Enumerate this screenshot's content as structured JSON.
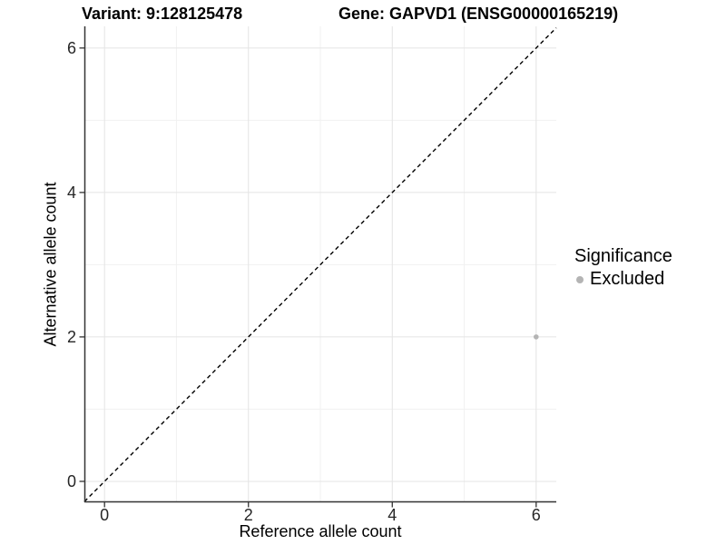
{
  "header": {
    "variant_title": "Variant: 9:128125478",
    "gene_title": "Gene: GAPVD1 (ENSG00000165219)"
  },
  "chart_data": {
    "type": "scatter",
    "xlabel": "Reference allele count",
    "ylabel": "Alternative allele count",
    "xlim": [
      -0.28,
      6.28
    ],
    "ylim": [
      -0.29,
      6.3
    ],
    "x_ticks": [
      0,
      2,
      4,
      6
    ],
    "y_ticks": [
      0,
      2,
      4,
      6
    ],
    "x_minor_grid": [
      1,
      3,
      5
    ],
    "y_minor_grid": [
      1,
      3,
      5
    ],
    "grid": true,
    "reference_line": {
      "slope": 1,
      "intercept": 0,
      "style": "dashed",
      "color": "#000000"
    },
    "points": [
      {
        "x": 6,
        "y": 2,
        "significance": "Excluded",
        "color": "#b4b4b4"
      }
    ],
    "legend": {
      "title": "Significance",
      "position": "right",
      "items": [
        {
          "label": "Excluded",
          "color": "#b4b4b4"
        }
      ]
    },
    "colors": {
      "grid_major": "#e4e4e4",
      "grid_minor": "#f1f1f1",
      "axis_line": "#333333",
      "tick_text": "#262626",
      "background": "#ffffff"
    }
  }
}
